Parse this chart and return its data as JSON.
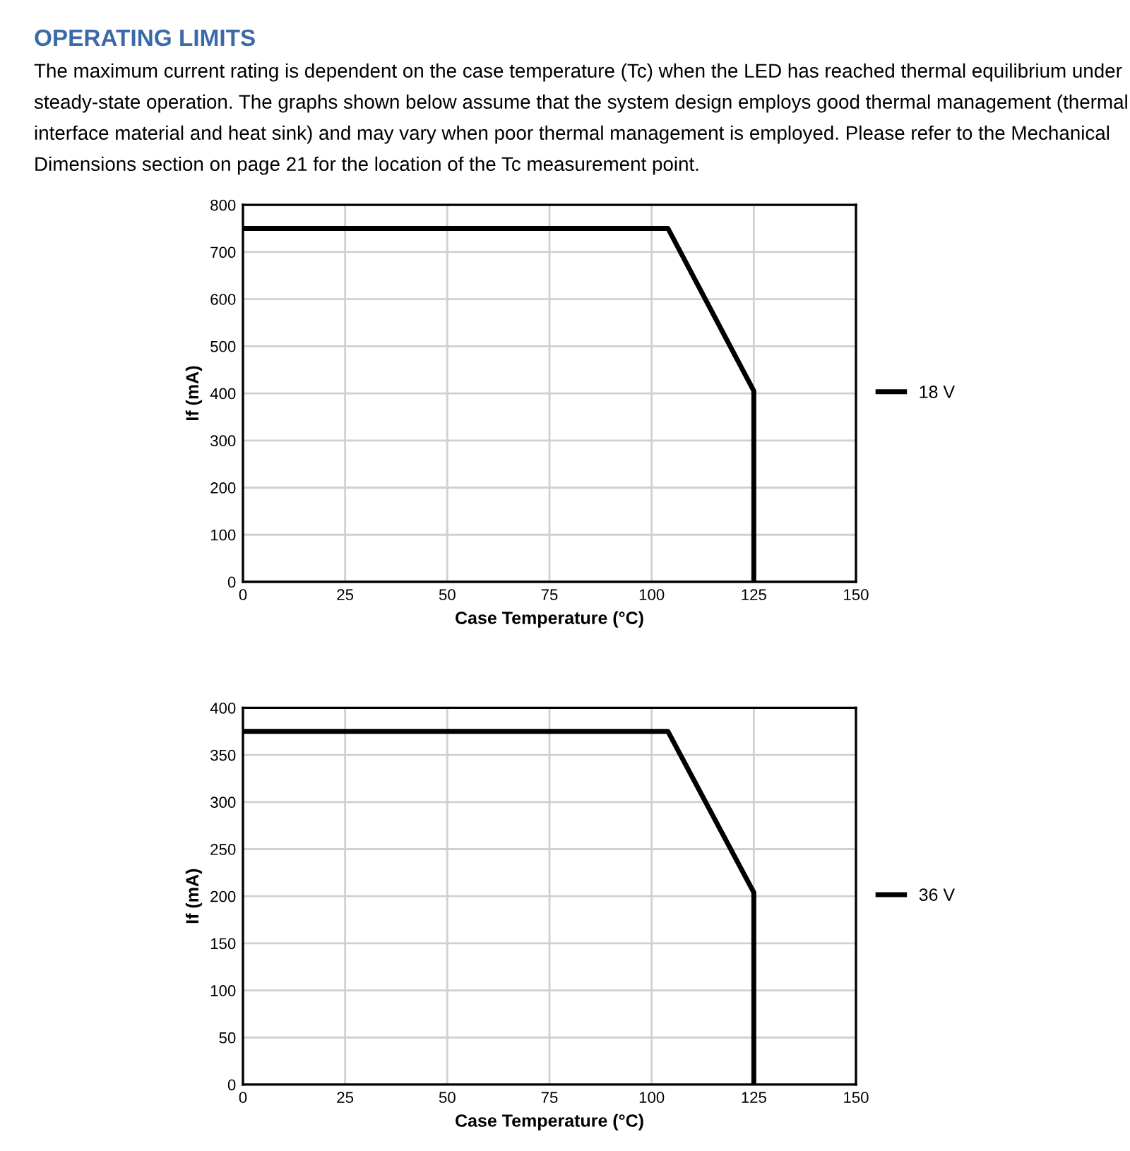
{
  "chart_data": [
    {
      "type": "line",
      "title": "OPERATING LIMITS",
      "subtitle": "The maximum current rating is dependent on the case temperature (Tc) when the LED has reached thermal equilibrium under steady-state operation. The graphs shown below assume that the system design employs good thermal management (thermal interface material and heat sink) and may vary when poor thermal management is employed. Please refer to the Mechanical Dimensions section on page 21 for the location of the Tc measurement point.",
      "xlabel": "Case Temperature (°C)",
      "ylabel": "If (mA)",
      "xlim": [
        0,
        150
      ],
      "xticks": [
        0,
        25,
        50,
        75,
        100,
        125,
        150
      ],
      "ylim": [
        0,
        800
      ],
      "yticks": [
        0,
        100,
        200,
        300,
        400,
        500,
        600,
        700,
        800
      ],
      "grid": true,
      "legend": "right",
      "series": [
        {
          "name": "18 V",
          "color": "#000000",
          "x": [
            0,
            104,
            125,
            125
          ],
          "values": [
            750,
            750,
            405,
            0
          ]
        }
      ]
    },
    {
      "type": "line",
      "xlabel": "Case Temperature (°C)",
      "ylabel": "If (mA)",
      "xlim": [
        0,
        150
      ],
      "xticks": [
        0,
        25,
        50,
        75,
        100,
        125,
        150
      ],
      "ylim": [
        0,
        400
      ],
      "yticks": [
        0,
        50,
        100,
        150,
        200,
        250,
        300,
        350,
        400
      ],
      "grid": true,
      "legend": "right",
      "series": [
        {
          "name": "36 V",
          "color": "#000000",
          "x": [
            0,
            104,
            125,
            125
          ],
          "values": [
            375,
            375,
            204,
            0
          ]
        }
      ]
    }
  ]
}
